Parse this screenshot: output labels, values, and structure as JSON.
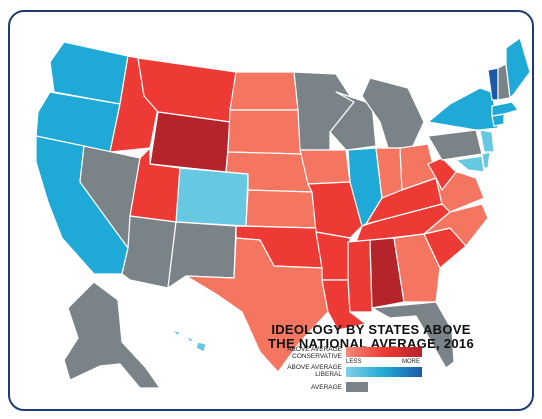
{
  "title_line1": "IDEOLOGY BY STATES ABOVE",
  "title_line2": "THE NATIONAL AVERAGE, 2016",
  "legend": {
    "conservative_label": "ABOVE AVERAGE CONSERVATIVE",
    "liberal_label": "ABOVE AVERAGE LIBERAL",
    "average_label": "AVERAGE",
    "less": "LESS",
    "more": "MORE"
  },
  "colors": {
    "conservative_less": "#f47560",
    "conservative_mid": "#ee3a35",
    "conservative_more": "#b5232b",
    "liberal_less": "#67c8e2",
    "liberal_mid": "#1ea9d6",
    "liberal_more": "#1c5aa6",
    "average": "#7a8387",
    "border": "#ffffff"
  }
}
